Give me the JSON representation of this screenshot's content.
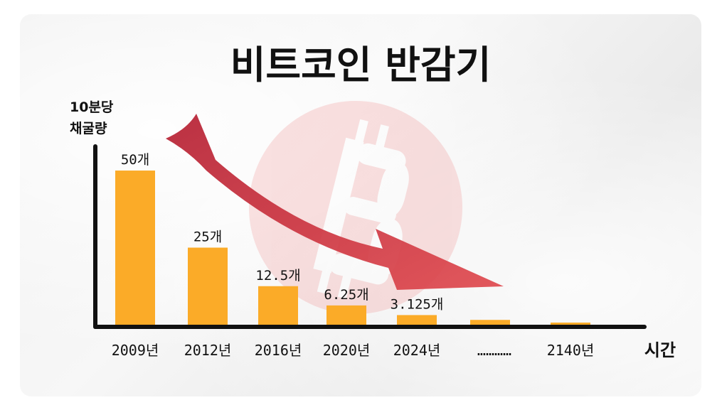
{
  "chart_data": {
    "type": "bar",
    "title": "비트코인 반감기",
    "ylabel_lines": [
      "10분당",
      "채굴량"
    ],
    "xlabel": "시간",
    "categories": [
      "2009년",
      "2012년",
      "2016년",
      "2020년",
      "2024년",
      "",
      "2140년"
    ],
    "values": [
      50,
      25,
      12.5,
      6.25,
      3.125,
      1.5625,
      0.5
    ],
    "data_labels": [
      "50개",
      "25개",
      "12.5개",
      "6.25개",
      "3.125개",
      "",
      ""
    ],
    "ellipsis": "…………",
    "ylim": [
      0,
      56
    ],
    "grid": false,
    "legend": "none",
    "colors": {
      "bar": "#fbab28",
      "axis": "#111111",
      "arrow": "#d8343d",
      "coin": "#f08a8a"
    },
    "icons": [
      "bitcoin-logo-watermark-icon",
      "downward-trend-arrow-icon"
    ]
  }
}
